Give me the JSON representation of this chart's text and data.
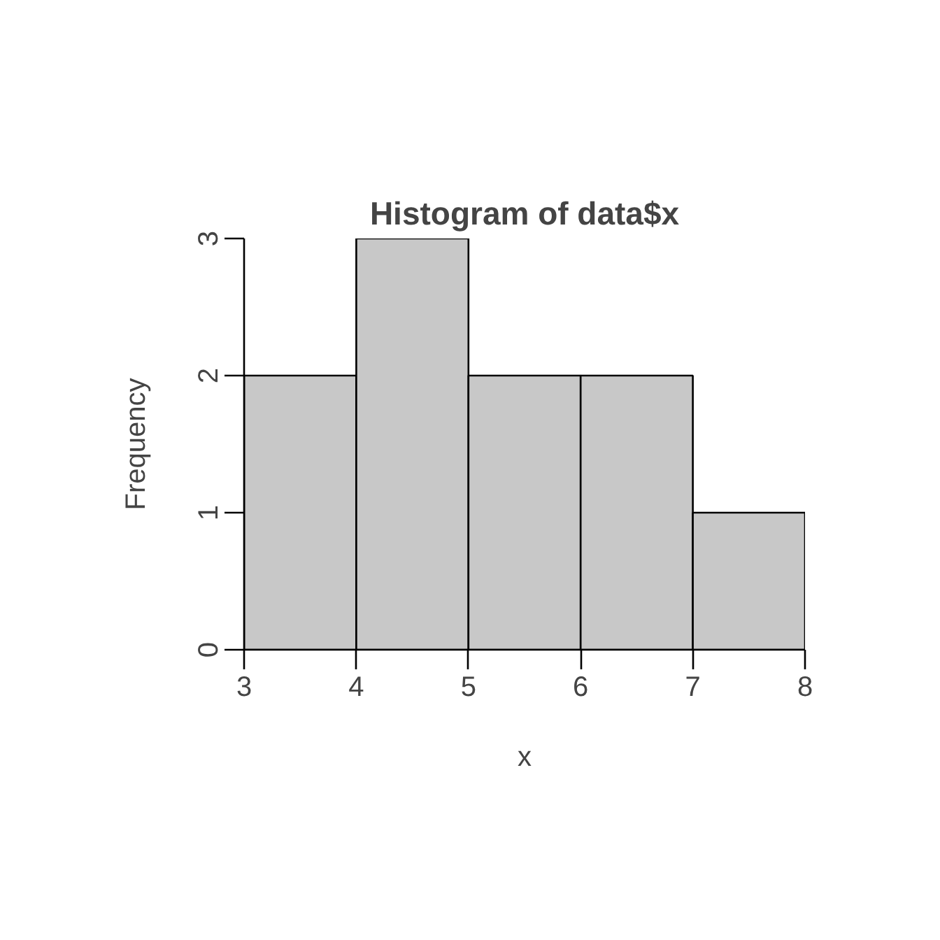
{
  "chart_data": {
    "type": "histogram",
    "title": "Histogram of data$x",
    "xlabel": "x",
    "ylabel": "Frequency",
    "bins": [
      3,
      4,
      5,
      6,
      7,
      8
    ],
    "values": [
      2,
      3,
      2,
      2,
      1
    ],
    "color": "#c8c8c8",
    "xlim": [
      3,
      8
    ],
    "ylim": [
      0,
      3
    ],
    "xticks": [
      3,
      4,
      5,
      6,
      7,
      8
    ],
    "yticks": [
      0,
      1,
      2,
      3
    ],
    "grid": false
  }
}
